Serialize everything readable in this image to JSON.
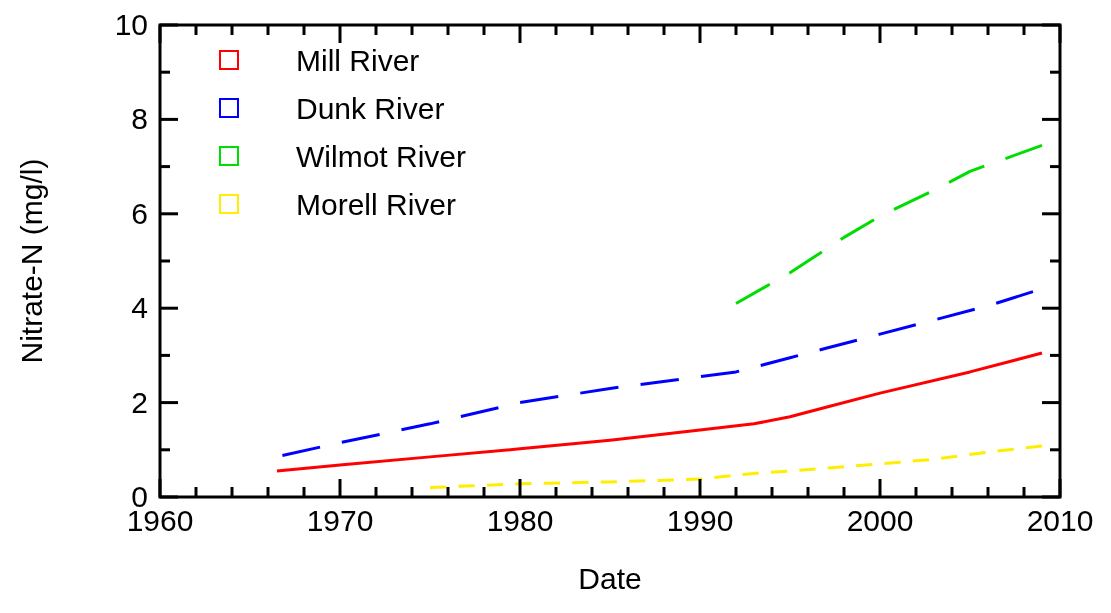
{
  "chart_data": {
    "type": "line",
    "xlabel": "Date",
    "ylabel": "Nitrate-N (mg/l)",
    "xlim": [
      1960,
      2010
    ],
    "ylim": [
      0,
      10
    ],
    "xticks": [
      1960,
      {
        "value": 1962,
        "label": null
      },
      {
        "value": 1964,
        "label": null
      },
      {
        "value": 1966,
        "label": null
      },
      {
        "value": 1968,
        "label": null
      },
      1970,
      {
        "value": 1972,
        "label": null
      },
      {
        "value": 1974,
        "label": null
      },
      {
        "value": 1976,
        "label": null
      },
      {
        "value": 1978,
        "label": null
      },
      1980,
      {
        "value": 1982,
        "label": null
      },
      {
        "value": 1984,
        "label": null
      },
      {
        "value": 1986,
        "label": null
      },
      {
        "value": 1988,
        "label": null
      },
      1990,
      {
        "value": 1992,
        "label": null
      },
      {
        "value": 1994,
        "label": null
      },
      {
        "value": 1996,
        "label": null
      },
      {
        "value": 1998,
        "label": null
      },
      2000,
      {
        "value": 2002,
        "label": null
      },
      {
        "value": 2004,
        "label": null
      },
      {
        "value": 2006,
        "label": null
      },
      {
        "value": 2008,
        "label": null
      },
      2010
    ],
    "yticks": [
      0,
      {
        "value": 1,
        "label": null
      },
      2,
      {
        "value": 3,
        "label": null
      },
      4,
      {
        "value": 5,
        "label": null
      },
      6,
      {
        "value": 7,
        "label": null
      },
      8,
      {
        "value": 9,
        "label": null
      },
      10
    ],
    "grid": false,
    "legend": "top left",
    "series": [
      {
        "name": "Mill River",
        "color": "#ff0000",
        "line_style": "solid",
        "x": [
          1966.5,
          1970,
          1975,
          1980,
          1985,
          1990,
          1993,
          1995,
          1997,
          2000,
          2005,
          2009
        ],
        "values": [
          0.55,
          0.68,
          0.85,
          1.02,
          1.2,
          1.42,
          1.55,
          1.7,
          1.9,
          2.2,
          2.65,
          3.05
        ]
      },
      {
        "name": "Dunk River",
        "color": "#0000ff",
        "line_style": "dashed",
        "x": [
          1966.8,
          1970,
          1975,
          1980,
          1985,
          1990,
          1992,
          1995,
          1997,
          2000,
          2003,
          2006,
          2008.5
        ],
        "values": [
          0.88,
          1.15,
          1.55,
          2.0,
          2.3,
          2.55,
          2.65,
          2.95,
          3.15,
          3.45,
          3.75,
          4.05,
          4.35
        ]
      },
      {
        "name": "Wilmot River",
        "color": "#00dd00",
        "line_style": "dashed",
        "x": [
          1992,
          1995,
          1998,
          2000,
          2003,
          2005,
          2009
        ],
        "values": [
          4.1,
          4.75,
          5.5,
          5.95,
          6.5,
          6.9,
          7.45
        ]
      },
      {
        "name": "Morell River",
        "color": "#ffee00",
        "line_style": "dotted",
        "x": [
          1975,
          1980,
          1985,
          1990,
          1993,
          1995,
          2000,
          2003,
          2006,
          2009
        ],
        "values": [
          0.2,
          0.28,
          0.32,
          0.38,
          0.5,
          0.55,
          0.7,
          0.8,
          0.95,
          1.08
        ]
      }
    ]
  }
}
